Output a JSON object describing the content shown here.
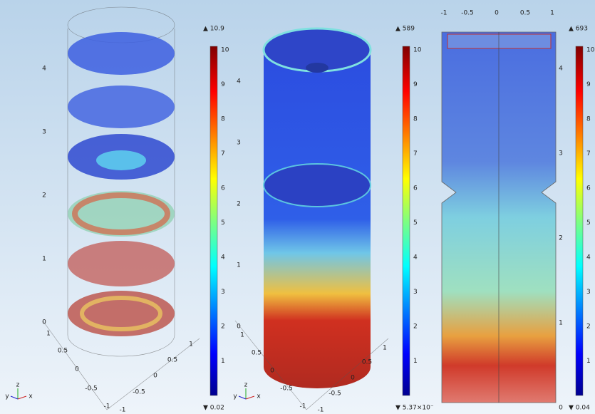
{
  "panels": [
    {
      "max_label": "▲ 10.9",
      "min_label": "▼ 0.02",
      "colorbar_ticks": [
        "1",
        "2",
        "3",
        "4",
        "5",
        "6",
        "7",
        "8",
        "9",
        "10"
      ],
      "z_ticks": [
        "0",
        "1",
        "2",
        "3",
        "4"
      ],
      "x_ticks": [
        "1",
        "0.5",
        "0",
        "-0.5",
        "-1"
      ],
      "y_ticks": [
        "-1",
        "-0.5",
        "0",
        "0.5",
        "1"
      ],
      "triad": [
        "z",
        "y",
        "x"
      ]
    },
    {
      "max_label": "▲ 589",
      "min_label": "▼ 5.37×10⁻",
      "colorbar_ticks": [
        "1",
        "2",
        "3",
        "4",
        "5",
        "6",
        "7",
        "8",
        "9",
        "10"
      ],
      "z_ticks": [
        "0",
        "1",
        "2",
        "3",
        "4"
      ],
      "x_ticks": [
        "1",
        "0.5",
        "0",
        "-0.5",
        "-1"
      ],
      "y_ticks": [
        "-1",
        "-0.5",
        "0",
        "0.5",
        "1"
      ],
      "triad": [
        "z",
        "y",
        "x"
      ]
    },
    {
      "max_label": "▲ 693",
      "min_label": "▼ 0.04",
      "colorbar_ticks": [
        "1",
        "2",
        "3",
        "4",
        "5",
        "6",
        "7",
        "8",
        "9",
        "10"
      ],
      "z_ticks": [
        "0",
        "1",
        "2",
        "3",
        "4"
      ],
      "x_ticks": [
        "-1",
        "-0.5",
        "0",
        "0.5",
        "1"
      ]
    }
  ]
}
